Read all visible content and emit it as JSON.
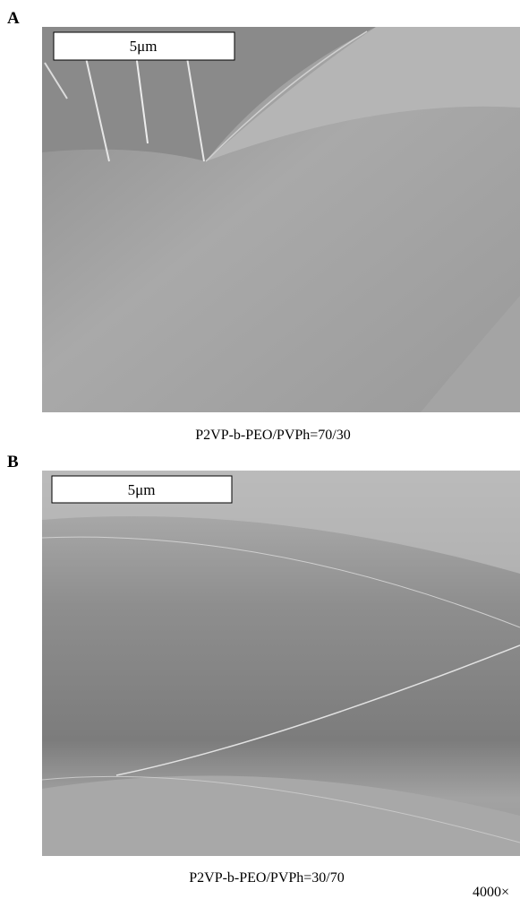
{
  "panels": [
    {
      "label": "A",
      "scale_bar": "5μm",
      "caption": "P2VP-b-PEO/PVPh=70/30"
    },
    {
      "label": "B",
      "scale_bar": "5μm",
      "caption": "P2VP-b-PEO/PVPh=30/70"
    }
  ],
  "magnification": "4000×"
}
